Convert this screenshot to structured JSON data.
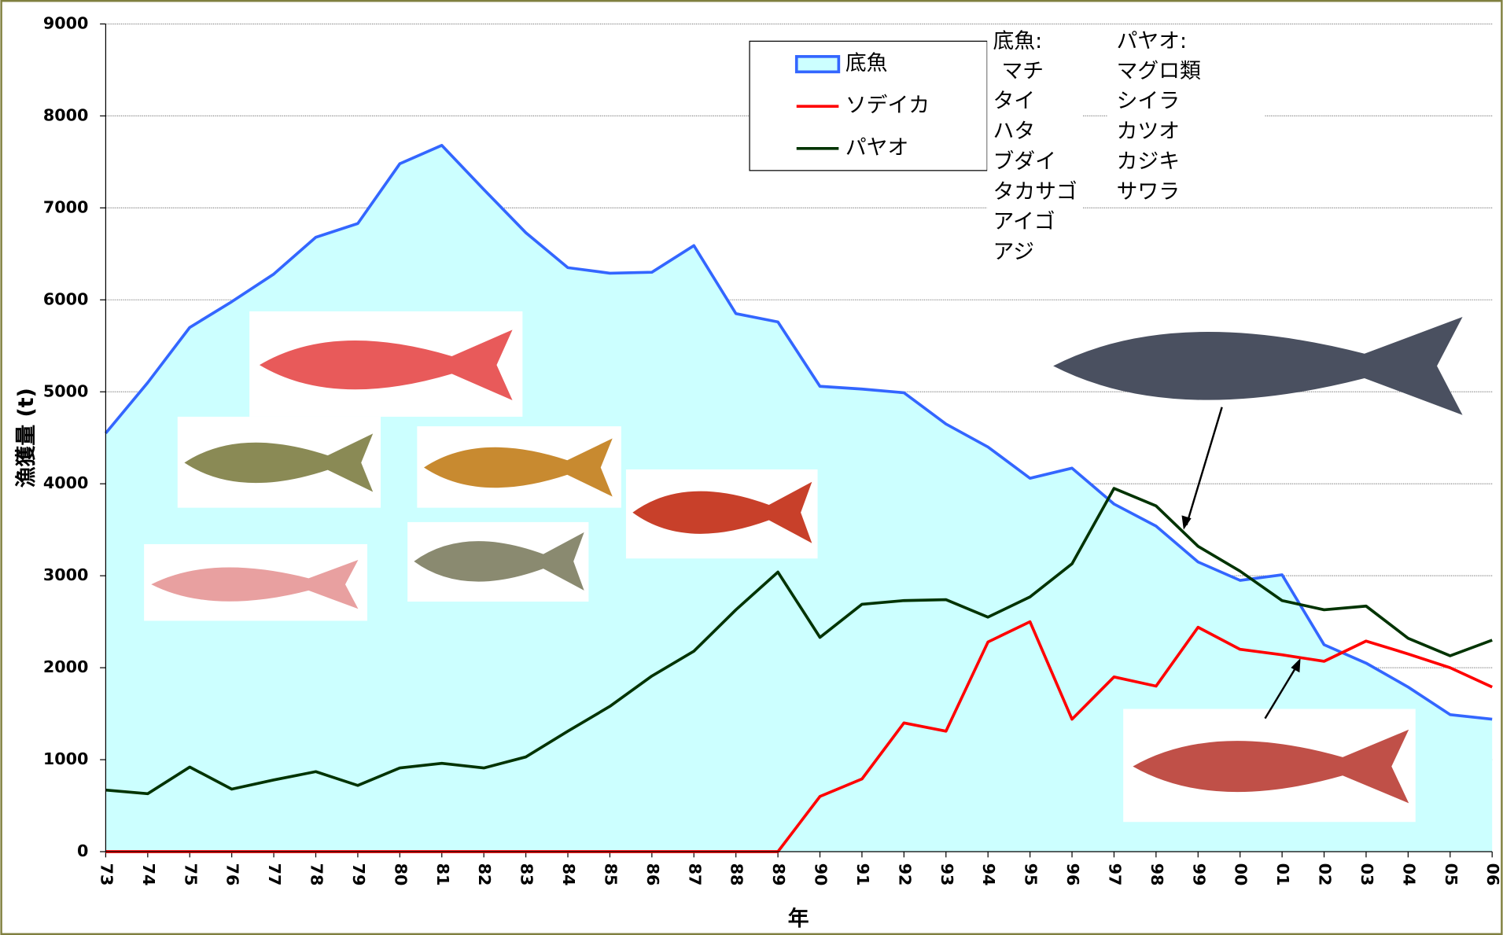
{
  "chart_data": {
    "type": "line",
    "x_label": "年",
    "y_label": "漁獲量 (t)",
    "categories": [
      "73",
      "74",
      "75",
      "76",
      "77",
      "78",
      "79",
      "80",
      "81",
      "82",
      "83",
      "84",
      "85",
      "86",
      "87",
      "88",
      "89",
      "90",
      "91",
      "92",
      "93",
      "94",
      "95",
      "96",
      "97",
      "98",
      "99",
      "00",
      "01",
      "02",
      "03",
      "04",
      "05",
      "06"
    ],
    "series": [
      {
        "name": "底魚",
        "color": "#3366ff",
        "fill": "#ccffff",
        "values": [
          4550,
          5100,
          5700,
          5980,
          6280,
          6680,
          6830,
          7480,
          7680,
          7200,
          6730,
          6350,
          6290,
          6300,
          6590,
          5850,
          5760,
          5060,
          5030,
          4990,
          4650,
          4400,
          4060,
          4170,
          3780,
          3540,
          3150,
          2950,
          3010,
          2250,
          2050,
          1790,
          1490,
          1440
        ]
      },
      {
        "name": "ソデイカ",
        "color": "#ff0000",
        "values": [
          0,
          0,
          0,
          0,
          0,
          0,
          0,
          0,
          0,
          0,
          0,
          0,
          0,
          0,
          0,
          0,
          0,
          600,
          790,
          1400,
          1310,
          2280,
          2500,
          1440,
          1900,
          1800,
          2440,
          2200,
          2140,
          2070,
          2290,
          2150,
          2000,
          1790
        ]
      },
      {
        "name": "パヤオ",
        "color": "#003300",
        "values": [
          670,
          630,
          920,
          680,
          780,
          870,
          720,
          910,
          960,
          910,
          1030,
          1310,
          1580,
          1910,
          2180,
          2630,
          3040,
          2330,
          2690,
          2730,
          2740,
          2550,
          2770,
          3130,
          3950,
          3760,
          3320,
          3050,
          2730,
          2630,
          2670,
          2320,
          2130,
          2300
        ]
      }
    ],
    "ylim": [
      0,
      9000
    ],
    "yticks": [
      0,
      1000,
      2000,
      3000,
      4000,
      5000,
      6000,
      7000,
      8000,
      9000
    ],
    "grid": true,
    "annotations": [
      {
        "title": "底魚:",
        "items": [
          "マチ",
          "タイ",
          "ハタ",
          "ブダイ",
          "タカサゴ",
          "アイゴ",
          "アジ"
        ]
      },
      {
        "title": "パヤオ:",
        "items": [
          "マグロ類",
          "シイラ",
          "カツオ",
          "カジキ",
          "サワラ"
        ]
      }
    ]
  }
}
